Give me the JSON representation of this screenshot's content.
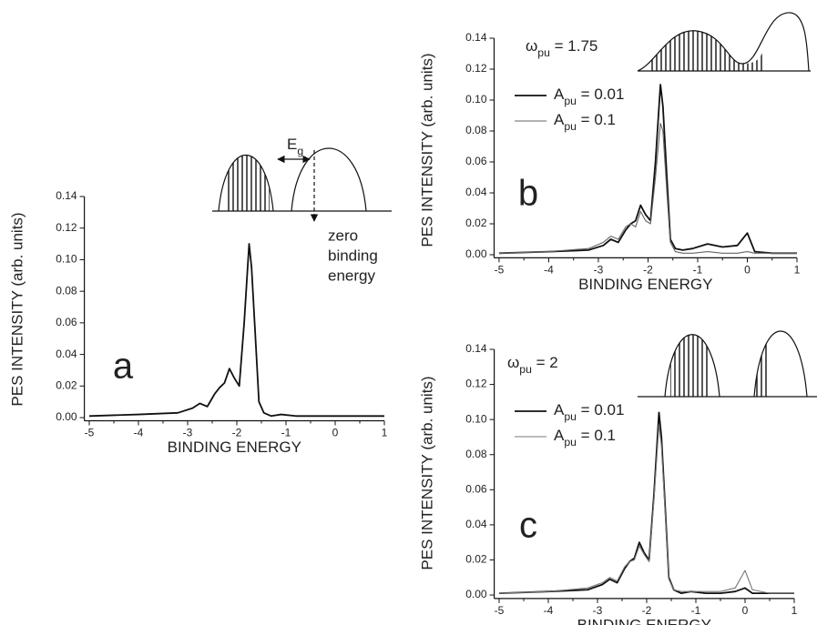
{
  "chart_data": [
    {
      "type": "line",
      "panel_label": "a",
      "xlabel": "BINDING ENERGY",
      "ylabel": "PES INTENSITY (arb. units)",
      "annotations": [
        "Eg",
        "zero",
        "binding",
        "energy"
      ],
      "x": [
        -5,
        -4,
        -3.2,
        -2.9,
        -2.75,
        -2.6,
        -2.45,
        -2.35,
        -2.25,
        -2.15,
        -2.05,
        -1.95,
        -1.85,
        -1.75,
        -1.7,
        -1.62,
        -1.55,
        -1.45,
        -1.3,
        -1.1,
        -0.8,
        -0.5,
        0,
        0.5,
        1
      ],
      "values": [
        0.001,
        0.002,
        0.003,
        0.006,
        0.009,
        0.007,
        0.015,
        0.019,
        0.022,
        0.031,
        0.025,
        0.02,
        0.06,
        0.11,
        0.095,
        0.05,
        0.01,
        0.003,
        0.001,
        0.002,
        0.001,
        0.001,
        0.001,
        0.001,
        0.001
      ],
      "color": "#111111",
      "xlim": [
        -5.1,
        1
      ],
      "ylim": [
        -0.002,
        0.14
      ],
      "xticks": [
        -5,
        -4,
        -3,
        -2,
        -1,
        0,
        1
      ],
      "yticks": [
        {
          "value": 0,
          "label": "0.00"
        },
        {
          "value": 0.02,
          "label": "0.02"
        },
        {
          "value": 0.04,
          "label": "0.04"
        },
        {
          "value": 0.06,
          "label": "0.06"
        },
        {
          "value": 0.08,
          "label": "0.08"
        },
        {
          "value": 0.1,
          "label": "0.10"
        },
        {
          "value": 0.12,
          "label": "0.12"
        },
        {
          "value": 0.14,
          "label": "0.14"
        }
      ]
    },
    {
      "type": "line",
      "panel_label": "b",
      "title": "ωpu = 1.75",
      "xlabel": "BINDING ENERGY",
      "ylabel": "PES INTENSITY (arb. units)",
      "x": [
        -5,
        -4,
        -3.2,
        -2.9,
        -2.75,
        -2.6,
        -2.45,
        -2.35,
        -2.25,
        -2.15,
        -2.05,
        -1.95,
        -1.85,
        -1.75,
        -1.7,
        -1.62,
        -1.55,
        -1.45,
        -1.3,
        -1.1,
        -0.8,
        -0.5,
        -0.2,
        0,
        0.15,
        0.5,
        1
      ],
      "series": [
        {
          "name": "Apu = 0.01",
          "color": "#111111",
          "values": [
            0.001,
            0.002,
            0.003,
            0.006,
            0.01,
            0.008,
            0.016,
            0.02,
            0.022,
            0.032,
            0.026,
            0.022,
            0.06,
            0.11,
            0.096,
            0.05,
            0.01,
            0.004,
            0.003,
            0.004,
            0.007,
            0.005,
            0.006,
            0.014,
            0.002,
            0.001,
            0.001
          ]
        },
        {
          "name": "Apu = 0.1",
          "color": "#666666",
          "values": [
            0.001,
            0.002,
            0.004,
            0.008,
            0.012,
            0.01,
            0.018,
            0.02,
            0.018,
            0.028,
            0.022,
            0.02,
            0.05,
            0.085,
            0.08,
            0.04,
            0.008,
            0.002,
            0.001,
            0.001,
            0.002,
            0.001,
            0.001,
            0.002,
            0.001,
            0.001,
            0.001
          ]
        }
      ],
      "xlim": [
        -5.1,
        1
      ],
      "ylim": [
        -0.002,
        0.14
      ],
      "xticks": [
        -5,
        -4,
        -3,
        -2,
        -1,
        0,
        1
      ],
      "yticks": [
        {
          "value": 0,
          "label": "0.00"
        },
        {
          "value": 0.02,
          "label": "0.02"
        },
        {
          "value": 0.04,
          "label": "0.04"
        },
        {
          "value": 0.06,
          "label": "0.06"
        },
        {
          "value": 0.08,
          "label": "0.08"
        },
        {
          "value": 0.1,
          "label": "0.10"
        },
        {
          "value": 0.12,
          "label": "0.12"
        },
        {
          "value": 0.14,
          "label": "0.14"
        }
      ]
    },
    {
      "type": "line",
      "panel_label": "c",
      "title": "ωpu = 2",
      "xlabel": "BINDING ENERGY",
      "ylabel": "PES INTENSITY (arb. units)",
      "x": [
        -5,
        -4,
        -3.2,
        -2.9,
        -2.75,
        -2.6,
        -2.45,
        -2.35,
        -2.25,
        -2.15,
        -2.05,
        -1.95,
        -1.85,
        -1.75,
        -1.7,
        -1.62,
        -1.55,
        -1.45,
        -1.3,
        -1.1,
        -0.8,
        -0.5,
        -0.2,
        0,
        0.15,
        0.5,
        1
      ],
      "series": [
        {
          "name": "Apu = 0.01",
          "color": "#111111",
          "values": [
            0.001,
            0.002,
            0.003,
            0.006,
            0.009,
            0.007,
            0.015,
            0.019,
            0.021,
            0.03,
            0.024,
            0.02,
            0.058,
            0.104,
            0.09,
            0.048,
            0.01,
            0.003,
            0.001,
            0.002,
            0.001,
            0.001,
            0.002,
            0.004,
            0.001,
            0.001,
            0.001
          ]
        },
        {
          "name": "Apu = 0.1",
          "color": "#777777",
          "values": [
            0.001,
            0.002,
            0.004,
            0.007,
            0.01,
            0.008,
            0.016,
            0.019,
            0.02,
            0.028,
            0.023,
            0.019,
            0.055,
            0.097,
            0.085,
            0.045,
            0.009,
            0.003,
            0.002,
            0.002,
            0.002,
            0.002,
            0.004,
            0.014,
            0.003,
            0.001,
            0.001
          ]
        }
      ],
      "xlim": [
        -5.1,
        1
      ],
      "ylim": [
        -0.002,
        0.14
      ],
      "xticks": [
        -5,
        -4,
        -3,
        -2,
        -1,
        0,
        1
      ],
      "yticks": [
        {
          "value": 0,
          "label": "0.00"
        },
        {
          "value": 0.02,
          "label": "0.02"
        },
        {
          "value": 0.04,
          "label": "0.04"
        },
        {
          "value": 0.06,
          "label": "0.06"
        },
        {
          "value": 0.08,
          "label": "0.08"
        },
        {
          "value": 0.1,
          "label": "0.10"
        },
        {
          "value": 0.12,
          "label": "0.12"
        },
        {
          "value": 0.14,
          "label": "0.14"
        }
      ]
    }
  ]
}
